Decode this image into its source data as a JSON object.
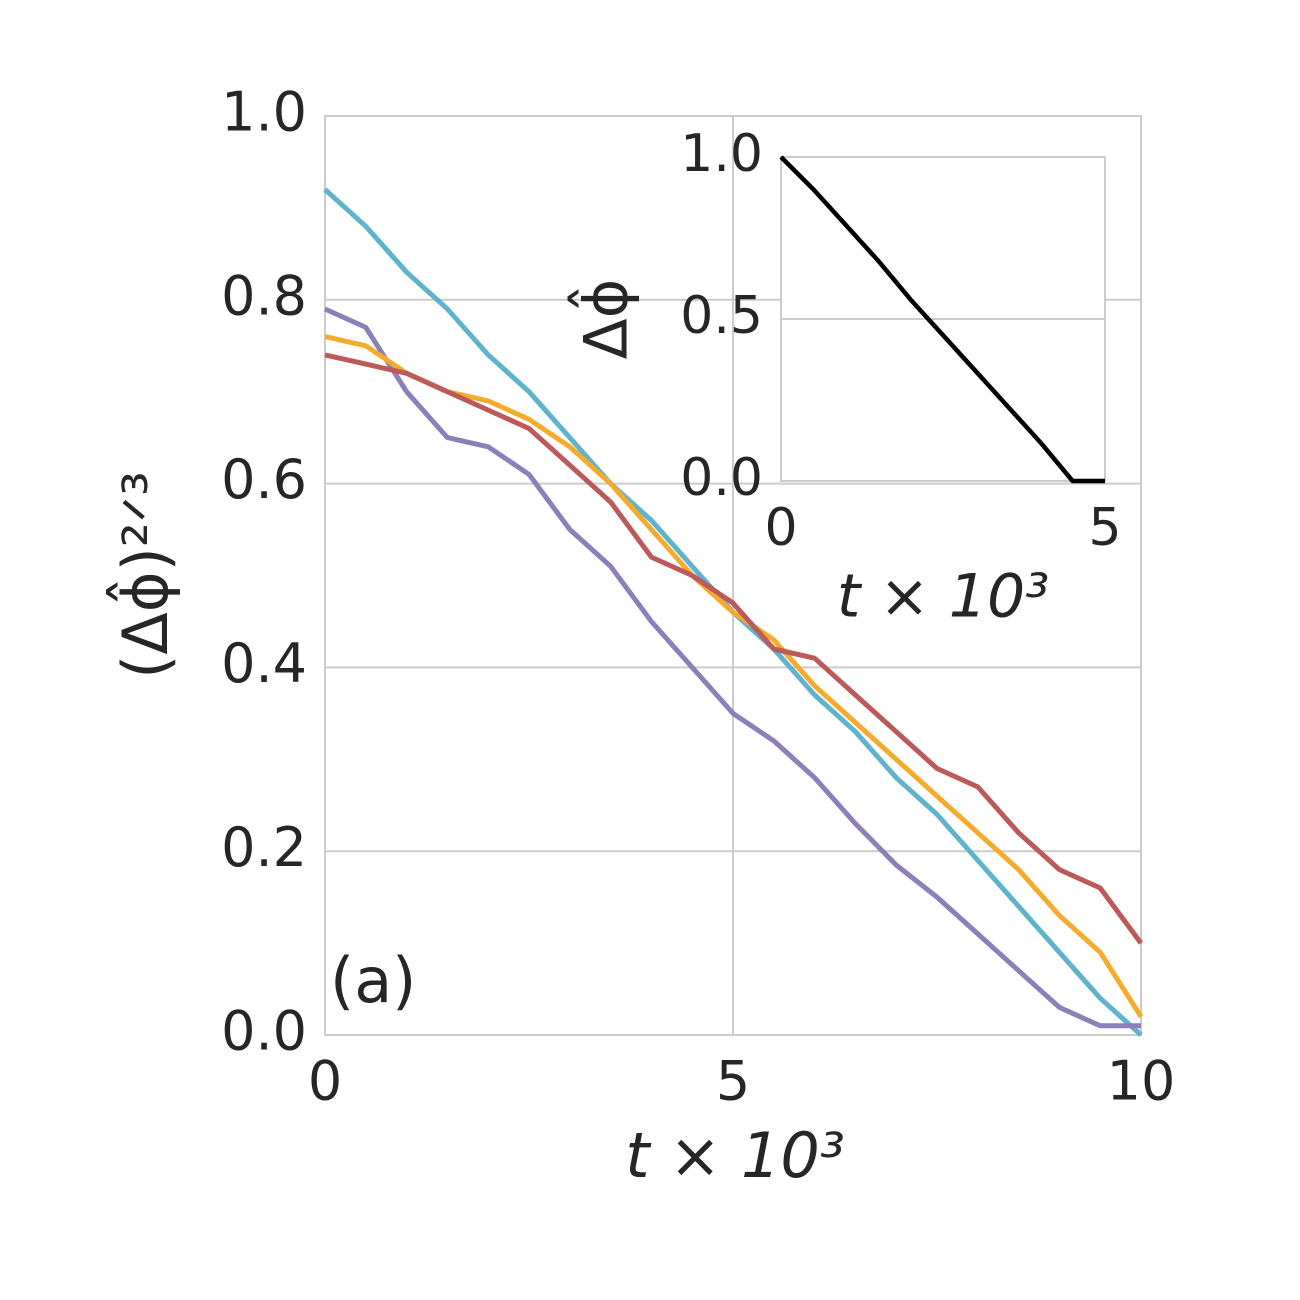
{
  "chart_data": [
    {
      "type": "line",
      "annotation": "(a)",
      "xlabel": "t × 10³",
      "ylabel": "(Δϕ̂)²ᐟ³",
      "x": [
        0,
        0.5,
        1,
        1.5,
        2,
        2.5,
        3,
        3.5,
        4,
        4.5,
        5,
        5.5,
        6,
        6.5,
        7,
        7.5,
        8,
        8.5,
        9,
        9.5,
        10
      ],
      "series": [
        {
          "color": "#5fb3cc",
          "values": [
            0.92,
            0.88,
            0.83,
            0.79,
            0.74,
            0.7,
            0.65,
            0.6,
            0.56,
            0.51,
            0.46,
            0.42,
            0.37,
            0.33,
            0.28,
            0.24,
            0.19,
            0.14,
            0.09,
            0.04,
            0.0
          ]
        },
        {
          "color": "#8c7fba",
          "values": [
            0.79,
            0.77,
            0.7,
            0.65,
            0.64,
            0.61,
            0.55,
            0.51,
            0.45,
            0.4,
            0.35,
            0.32,
            0.28,
            0.23,
            0.185,
            0.15,
            0.11,
            0.07,
            0.03,
            0.01,
            0.01
          ]
        },
        {
          "color": "#f5ac2e",
          "values": [
            0.76,
            0.75,
            0.72,
            0.7,
            0.69,
            0.67,
            0.64,
            0.6,
            0.55,
            0.5,
            0.46,
            0.43,
            0.38,
            0.34,
            0.3,
            0.26,
            0.22,
            0.18,
            0.13,
            0.09,
            0.02
          ]
        },
        {
          "color": "#bc5a5a",
          "values": [
            0.74,
            0.73,
            0.72,
            0.7,
            0.68,
            0.66,
            0.62,
            0.58,
            0.52,
            0.5,
            0.47,
            0.42,
            0.41,
            0.37,
            0.33,
            0.29,
            0.27,
            0.22,
            0.18,
            0.16,
            0.1
          ]
        }
      ],
      "xlim": [
        0,
        10
      ],
      "xticks": [
        0,
        5,
        10
      ],
      "ylim": [
        0,
        1
      ],
      "yticks": [
        {
          "value": 0,
          "label": "0.0"
        },
        0.2,
        0.4,
        0.6,
        0.8,
        {
          "value": 1,
          "label": "1.0"
        }
      ],
      "grid": true
    },
    {
      "type": "line",
      "xlabel": "t × 10³",
      "ylabel": "Δϕ̂",
      "x": [
        0,
        0.5,
        1,
        1.5,
        2,
        2.5,
        3,
        3.5,
        4,
        4.5,
        5
      ],
      "series": [
        {
          "color": "#000000",
          "values": [
            1.0,
            0.9,
            0.79,
            0.68,
            0.56,
            0.45,
            0.34,
            0.23,
            0.12,
            0.0,
            0.0
          ]
        }
      ],
      "xlim": [
        0,
        5
      ],
      "xticks": [
        0,
        5
      ],
      "ylim": [
        0,
        1
      ],
      "yticks": [
        {
          "value": 0,
          "label": "0.0"
        },
        0.5,
        {
          "value": 1,
          "label": "1.0"
        }
      ],
      "grid": true
    }
  ]
}
